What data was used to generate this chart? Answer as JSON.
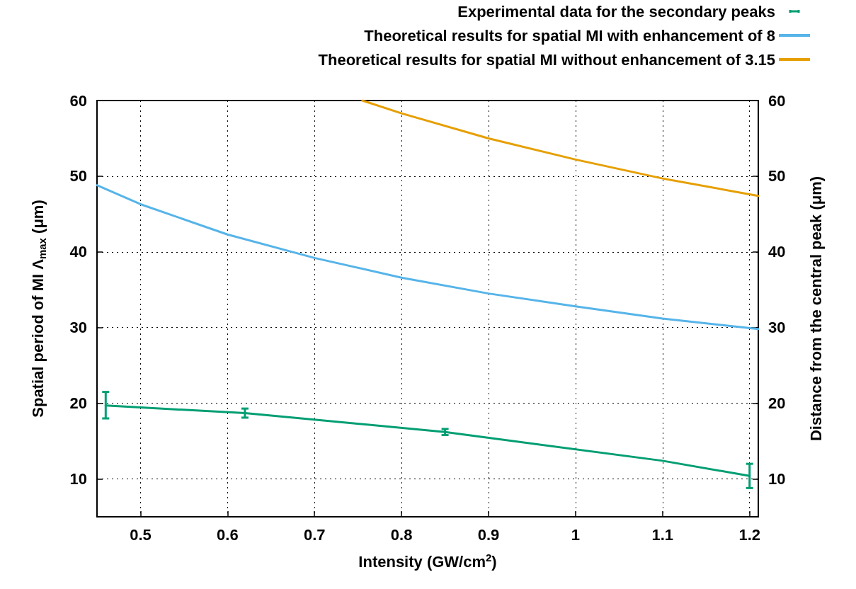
{
  "chart_data": {
    "type": "line",
    "xlabel": "Intensity (GW/cm$^{2}$)",
    "ylabel": "Spatial period of MI Λ$_{max}$ (μm)",
    "y2label": "Distance from the central peak (μm)",
    "xlim": [
      0.45,
      1.21
    ],
    "xticks": [
      0.5,
      0.6,
      0.7,
      0.8,
      0.9,
      1,
      1.1,
      1.2
    ],
    "ylim": [
      5,
      60
    ],
    "yticks": [
      10,
      20,
      30,
      40,
      50,
      60
    ],
    "y2lim": [
      5,
      60
    ],
    "y2ticks": [
      10,
      20,
      30,
      40,
      50,
      60
    ],
    "grid": true,
    "legend": "top right",
    "marker": "none",
    "line_style": "solid",
    "series": [
      {
        "name": "Experimental data for the secondary peaks",
        "color": "#009e73",
        "x": [
          0.46,
          0.62,
          0.85,
          1.1,
          1.2
        ],
        "values": [
          19.7,
          18.7,
          16.2,
          12.4,
          10.4
        ],
        "errors": [
          [
            18.0,
            21.5
          ],
          [
            18.1,
            19.3
          ],
          [
            15.8,
            16.6
          ],
          null,
          [
            8.8,
            12.0
          ]
        ]
      },
      {
        "name": "Theoretical results for spatial MI with enhancement of 8",
        "color": "#56b4e9",
        "x": [
          0.45,
          0.5,
          0.6,
          0.7,
          0.8,
          0.9,
          1.0,
          1.1,
          1.21
        ],
        "values": [
          48.8,
          46.3,
          42.3,
          39.2,
          36.6,
          34.5,
          32.8,
          31.2,
          29.8
        ]
      },
      {
        "name": "Theoretical results for spatial MI without enhancement of 3.15",
        "color": "#e69f00",
        "x": [
          0.755,
          0.8,
          0.9,
          1.0,
          1.1,
          1.21
        ],
        "values": [
          60.0,
          58.3,
          55.0,
          52.2,
          49.7,
          47.4
        ]
      }
    ]
  }
}
